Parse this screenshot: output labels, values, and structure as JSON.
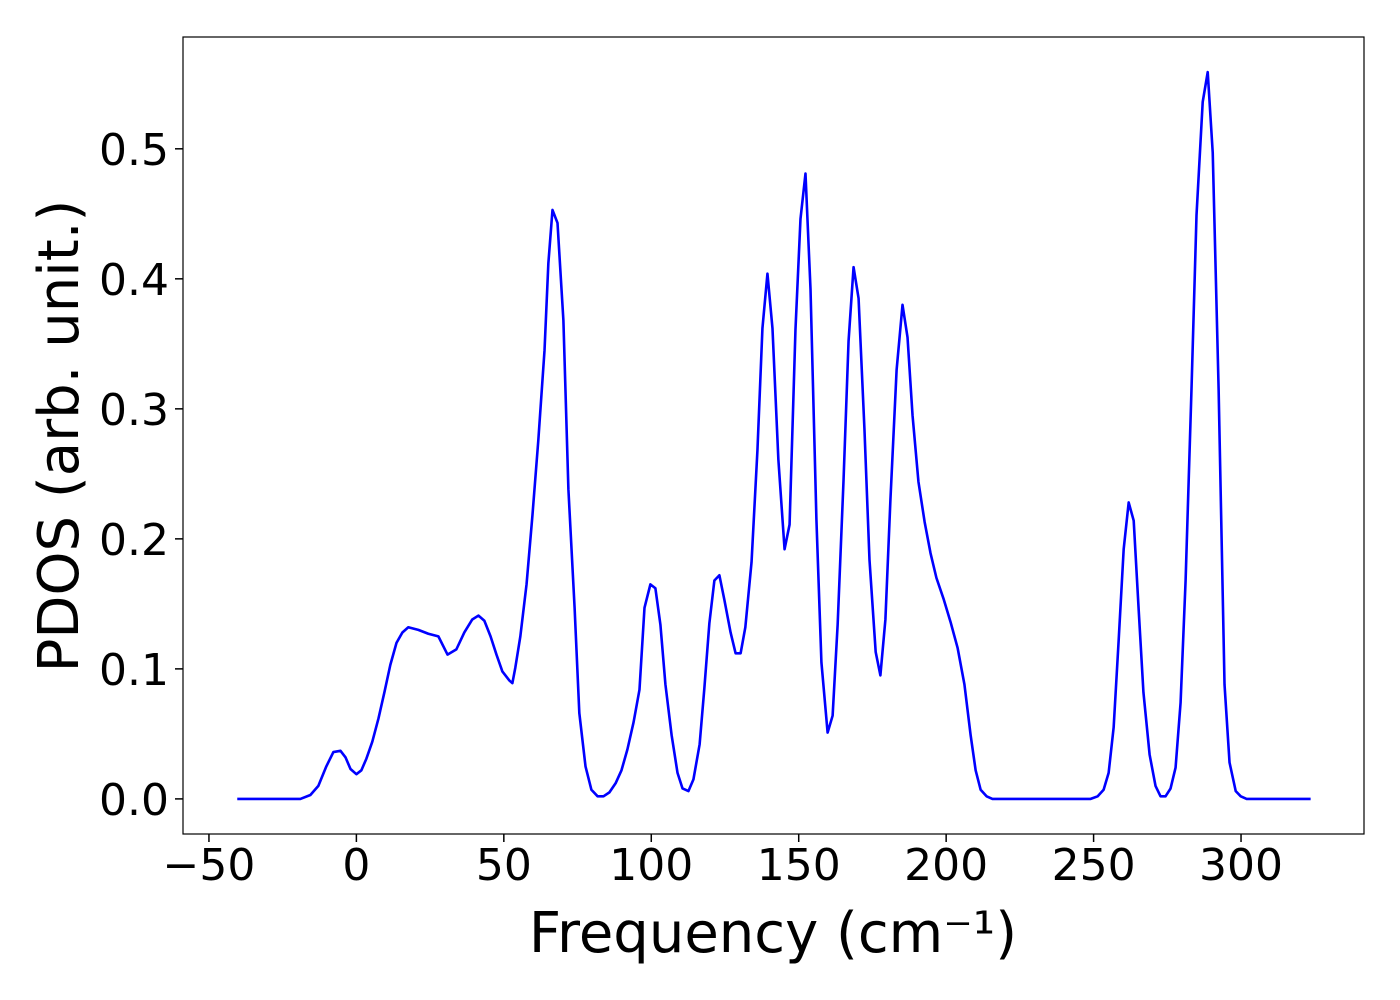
{
  "chart_data": {
    "type": "line",
    "xlabel": "Frequency (cm⁻¹)",
    "ylabel": "PDOS (arb. unit.)",
    "xlim": [
      -58.8,
      341.7
    ],
    "ylim": [
      -0.027,
      0.586
    ],
    "xticks": [
      {
        "value": -50,
        "label": "−50"
      },
      0,
      50,
      100,
      150,
      200,
      250,
      300
    ],
    "yticks": [
      {
        "value": 0,
        "label": "0.0"
      },
      0.1,
      0.2,
      0.3,
      0.4,
      0.5
    ],
    "grid": false,
    "series": [
      {
        "color": "#0000ff",
        "x": [
          -40.4,
          -19,
          -15.6,
          -12.9,
          -10.2,
          -7.8,
          -5.4,
          -3.7,
          -2,
          0,
          1.7,
          3.4,
          5.4,
          7.5,
          9.5,
          11.5,
          13.6,
          15.6,
          17.6,
          21,
          24.4,
          27.8,
          30.9,
          33.9,
          36.6,
          39.3,
          41.4,
          43.4,
          45.5,
          47.5,
          49.5,
          51.9,
          52.9,
          53.9,
          55.6,
          57.7,
          59.7,
          61.7,
          63.8,
          65.1,
          66.5,
          68.2,
          70.2,
          71.9,
          74,
          75.6,
          77.7,
          79.7,
          81.8,
          83.8,
          85.8,
          87.9,
          89.9,
          91.9,
          94,
          96,
          97.7,
          99.7,
          101.4,
          103.1,
          104.8,
          106.9,
          108.9,
          110.6,
          112.6,
          114.3,
          116.4,
          118,
          119.7,
          121.4,
          123.1,
          124.8,
          126.9,
          128.6,
          130.3,
          131.9,
          134,
          136,
          137.7,
          139.4,
          141.1,
          143.1,
          145.2,
          146.9,
          148.9,
          150.6,
          152.3,
          154,
          156,
          157.7,
          159.8,
          161.5,
          163.2,
          165.2,
          166.9,
          168.6,
          170.3,
          172.3,
          174,
          176.1,
          177.7,
          179.4,
          181.1,
          183.2,
          185.2,
          186.9,
          188.6,
          190.6,
          192.7,
          194.7,
          196.7,
          199.1,
          201.5,
          203.9,
          206.2,
          208.3,
          210,
          211.7,
          213.7,
          215.7,
          249,
          251.4,
          253.4,
          255.1,
          256.8,
          258.5,
          260.2,
          261.9,
          263.6,
          265.3,
          266.9,
          269,
          271,
          272.7,
          274.4,
          276.1,
          277.8,
          279.5,
          281.2,
          283.2,
          284.9,
          287,
          288.7,
          290.4,
          292.4,
          294.4,
          296.1,
          298.2,
          299.9,
          301.9,
          323.6
        ],
        "values": [
          0,
          0,
          0.003,
          0.01,
          0.025,
          0.036,
          0.037,
          0.032,
          0.023,
          0.019,
          0.022,
          0.031,
          0.044,
          0.062,
          0.082,
          0.103,
          0.12,
          0.128,
          0.132,
          0.13,
          0.127,
          0.125,
          0.111,
          0.115,
          0.128,
          0.138,
          0.141,
          0.137,
          0.125,
          0.111,
          0.098,
          0.091,
          0.089,
          0.101,
          0.125,
          0.165,
          0.218,
          0.276,
          0.345,
          0.412,
          0.453,
          0.443,
          0.368,
          0.238,
          0.147,
          0.066,
          0.025,
          0.007,
          0.002,
          0.002,
          0.005,
          0.012,
          0.022,
          0.038,
          0.059,
          0.084,
          0.147,
          0.165,
          0.162,
          0.134,
          0.088,
          0.049,
          0.02,
          0.008,
          0.006,
          0.015,
          0.042,
          0.085,
          0.135,
          0.168,
          0.172,
          0.153,
          0.128,
          0.112,
          0.112,
          0.132,
          0.182,
          0.268,
          0.362,
          0.404,
          0.362,
          0.261,
          0.192,
          0.211,
          0.361,
          0.446,
          0.481,
          0.392,
          0.215,
          0.105,
          0.051,
          0.064,
          0.134,
          0.245,
          0.352,
          0.409,
          0.385,
          0.284,
          0.184,
          0.113,
          0.095,
          0.138,
          0.23,
          0.33,
          0.38,
          0.355,
          0.295,
          0.244,
          0.213,
          0.189,
          0.17,
          0.154,
          0.136,
          0.116,
          0.088,
          0.049,
          0.022,
          0.007,
          0.002,
          0,
          0,
          0.002,
          0.007,
          0.02,
          0.055,
          0.122,
          0.192,
          0.228,
          0.214,
          0.145,
          0.082,
          0.034,
          0.01,
          0.002,
          0.002,
          0.008,
          0.024,
          0.074,
          0.168,
          0.315,
          0.449,
          0.536,
          0.559,
          0.497,
          0.315,
          0.088,
          0.028,
          0.006,
          0.002,
          0,
          0
        ]
      }
    ]
  }
}
